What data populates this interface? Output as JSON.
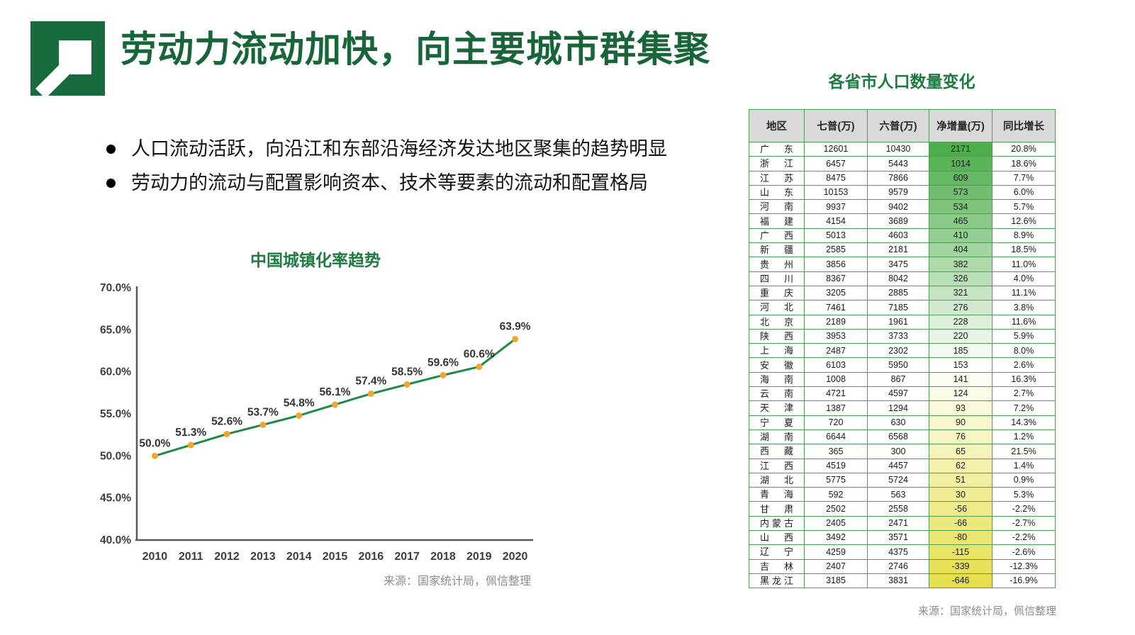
{
  "title": "劳动力流动加快，向主要城市群集聚",
  "bullets": [
    "人口流动活跃，向沿江和东部沿海经济发达地区聚集的趋势明显",
    "劳动力的流动与配置影响资本、技术等要素的流动和配置格局"
  ],
  "chart": {
    "title": "中国城镇化率趋势",
    "source": "来源：国家统计局，佩信整理"
  },
  "chart_data": {
    "type": "line",
    "title": "中国城镇化率趋势",
    "x": [
      "2010",
      "2011",
      "2012",
      "2013",
      "2014",
      "2015",
      "2016",
      "2017",
      "2018",
      "2019",
      "2020"
    ],
    "values": [
      50.0,
      51.3,
      52.6,
      53.7,
      54.8,
      56.1,
      57.4,
      58.5,
      59.6,
      60.6,
      63.9
    ],
    "point_labels": [
      "50.0%",
      "51.3%",
      "52.6%",
      "53.7%",
      "54.8%",
      "56.1%",
      "57.4%",
      "58.5%",
      "59.6%",
      "60.6%",
      "63.9%"
    ],
    "ylim": [
      40,
      70
    ],
    "yticks": [
      40,
      45,
      50,
      55,
      60,
      65,
      70
    ],
    "ytick_labels": [
      "40.0%",
      "45.0%",
      "50.0%",
      "55.0%",
      "60.0%",
      "65.0%",
      "70.0%"
    ],
    "grid": false,
    "legend": "none",
    "xlabel": "",
    "ylabel": ""
  },
  "table": {
    "title": "各省市人口数量变化",
    "source": "来源：国家统计局，佩信整理",
    "columns": [
      "地区",
      "七普(万)",
      "六普(万)",
      "净增量(万)",
      "同比增长"
    ],
    "rows": [
      [
        "广东",
        "12601",
        "10430",
        "2171",
        "20.8%"
      ],
      [
        "浙江",
        "6457",
        "5443",
        "1014",
        "18.6%"
      ],
      [
        "江苏",
        "8475",
        "7866",
        "609",
        "7.7%"
      ],
      [
        "山东",
        "10153",
        "9579",
        "573",
        "6.0%"
      ],
      [
        "河南",
        "9937",
        "9402",
        "534",
        "5.7%"
      ],
      [
        "福建",
        "4154",
        "3689",
        "465",
        "12.6%"
      ],
      [
        "广西",
        "5013",
        "4603",
        "410",
        "8.9%"
      ],
      [
        "新疆",
        "2585",
        "2181",
        "404",
        "18.5%"
      ],
      [
        "贵州",
        "3856",
        "3475",
        "382",
        "11.0%"
      ],
      [
        "四川",
        "8367",
        "8042",
        "326",
        "4.0%"
      ],
      [
        "重庆",
        "3205",
        "2885",
        "321",
        "11.1%"
      ],
      [
        "河北",
        "7461",
        "7185",
        "276",
        "3.8%"
      ],
      [
        "北京",
        "2189",
        "1961",
        "228",
        "11.6%"
      ],
      [
        "陕西",
        "3953",
        "3733",
        "220",
        "5.9%"
      ],
      [
        "上海",
        "2487",
        "2302",
        "185",
        "8.0%"
      ],
      [
        "安徽",
        "6103",
        "5950",
        "153",
        "2.6%"
      ],
      [
        "海南",
        "1008",
        "867",
        "141",
        "16.3%"
      ],
      [
        "云南",
        "4721",
        "4597",
        "124",
        "2.7%"
      ],
      [
        "天津",
        "1387",
        "1294",
        "93",
        "7.2%"
      ],
      [
        "宁夏",
        "720",
        "630",
        "90",
        "14.3%"
      ],
      [
        "湖南",
        "6644",
        "6568",
        "76",
        "1.2%"
      ],
      [
        "西藏",
        "365",
        "300",
        "65",
        "21.5%"
      ],
      [
        "江西",
        "4519",
        "4457",
        "62",
        "1.4%"
      ],
      [
        "湖北",
        "5775",
        "5724",
        "51",
        "0.9%"
      ],
      [
        "青海",
        "592",
        "563",
        "30",
        "5.3%"
      ],
      [
        "甘肃",
        "2502",
        "2558",
        "-56",
        "-2.2%"
      ],
      [
        "内蒙古",
        "2405",
        "2471",
        "-66",
        "-2.7%"
      ],
      [
        "山西",
        "3492",
        "3571",
        "-80",
        "-2.2%"
      ],
      [
        "辽宁",
        "4259",
        "4375",
        "-115",
        "-2.6%"
      ],
      [
        "吉林",
        "2407",
        "2746",
        "-339",
        "-12.3%"
      ],
      [
        "黑龙江",
        "3185",
        "3831",
        "-646",
        "-16.9%"
      ]
    ]
  },
  "colors": {
    "title_green": "#176539",
    "accent_green": "#1E7A40",
    "line_green": "#1E8A44",
    "marker_orange": "#F2A62C",
    "axis_gray": "#595959",
    "table_border_green": "#4E9D52",
    "header_bg": "#D9D9D9",
    "scale_green_max": "#4FAE4C",
    "scale_mid_white": "#FFFFFF",
    "scale_yellow_min": "#E6E04F",
    "logo_green": "#176B3C",
    "source_gray": "#8C8C8C"
  }
}
